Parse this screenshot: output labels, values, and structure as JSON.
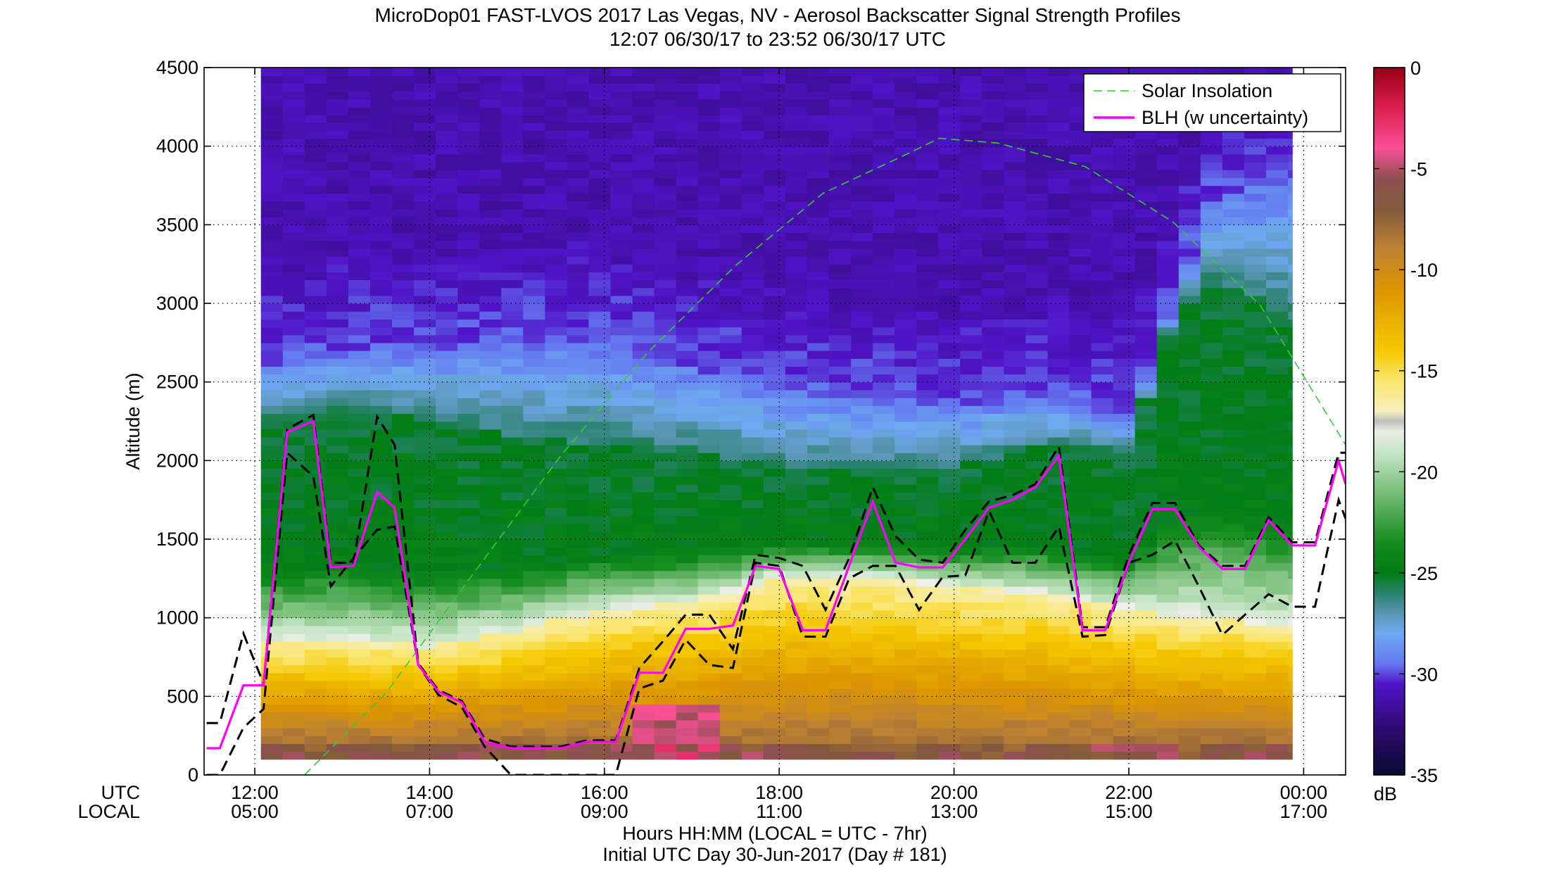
{
  "chart_data": {
    "type": "heatmap",
    "title": "MicroDop01 FAST-LVOS 2017 Las Vegas, NV - Aerosol Backscatter Signal Strength Profiles",
    "subtitle": "12:07 06/30/17 to 23:52 06/30/17  UTC",
    "ylabel": "Altitude (m)",
    "xlabel": "Hours HH:MM  (LOCAL = UTC - 7hr)",
    "xlabel2": "Initial UTC Day 30-Jun-2017 (Day # 181)",
    "utc_row_label": "UTC",
    "local_row_label": "LOCAL",
    "xlim_hours_utc": [
      11.42,
      24.48
    ],
    "ylim": [
      0,
      4500
    ],
    "yticks": [
      0,
      500,
      1000,
      1500,
      2000,
      2500,
      3000,
      3500,
      4000,
      4500
    ],
    "ytick_labels": [
      "0",
      "500",
      "1000",
      "1500",
      "2000",
      "2500",
      "3000",
      "3500",
      "4000",
      "4500"
    ],
    "xticks_hours_utc": [
      12,
      14,
      16,
      18,
      20,
      22,
      24
    ],
    "xtick_labels_utc": [
      "12:00",
      "14:00",
      "16:00",
      "18:00",
      "20:00",
      "22:00",
      "00:00"
    ],
    "xtick_labels_local": [
      "05:00",
      "07:00",
      "09:00",
      "11:00",
      "13:00",
      "15:00",
      "17:00"
    ],
    "grid": true,
    "legend_position": "top-right",
    "legend": [
      {
        "label": "Solar Insolation",
        "color": "#33cc33",
        "style": "dashed"
      },
      {
        "label": "BLH (w uncertainty)",
        "color": "#ff00ff",
        "style": "solid"
      }
    ],
    "colorbar": {
      "unit": "dB",
      "range": [
        -35,
        0
      ],
      "ticks": [
        0,
        -5,
        -10,
        -15,
        -20,
        -25,
        -30,
        -35
      ],
      "tick_labels": [
        "0",
        "-5",
        "-10",
        "-15",
        "-20",
        "-25",
        "-30",
        "-35"
      ]
    },
    "heatmap": {
      "time_start": 12.07,
      "time_end": 23.87,
      "time_step": 0.25,
      "alt_start": 100,
      "alt_end": 4500,
      "alt_step": 50,
      "cell_boundaries": [
        {
          "time": 12.07,
          "surface": 850,
          "mixed": 2250,
          "aloft": 2600
        },
        {
          "time": 13.0,
          "surface": 850,
          "mixed": 2350,
          "aloft": 2700
        },
        {
          "time": 14.0,
          "surface": 820,
          "mixed": 2250,
          "aloft": 2700
        },
        {
          "time": 15.0,
          "surface": 920,
          "mixed": 2150,
          "aloft": 2750
        },
        {
          "time": 16.0,
          "surface": 1050,
          "mixed": 2100,
          "aloft": 2750
        },
        {
          "time": 17.0,
          "surface": 1100,
          "mixed": 2050,
          "aloft": 2600
        },
        {
          "time": 18.0,
          "surface": 1250,
          "mixed": 1950,
          "aloft": 2450
        },
        {
          "time": 19.0,
          "surface": 1250,
          "mixed": 1950,
          "aloft": 2400
        },
        {
          "time": 20.0,
          "surface": 1200,
          "mixed": 1950,
          "aloft": 2350
        },
        {
          "time": 21.0,
          "surface": 1150,
          "mixed": 2100,
          "aloft": 2400
        },
        {
          "time": 22.0,
          "surface": 1050,
          "mixed": 2050,
          "aloft": 2250
        },
        {
          "time": 22.5,
          "surface": 1000,
          "mixed": 2900,
          "aloft": 3000
        },
        {
          "time": 23.0,
          "surface": 1000,
          "mixed": 3150,
          "aloft": 3700
        },
        {
          "time": 23.87,
          "surface": 950,
          "mixed": 2900,
          "aloft": 3800
        }
      ]
    },
    "series": [
      {
        "name": "BLH (w uncertainty)",
        "color": "#ff00ff",
        "x_hours_utc": [
          11.45,
          11.6,
          11.87,
          12.1,
          12.37,
          12.67,
          12.87,
          13.13,
          13.4,
          13.6,
          13.87,
          14.1,
          14.37,
          14.63,
          14.93,
          15.2,
          15.5,
          15.8,
          16.13,
          16.4,
          16.67,
          16.93,
          17.2,
          17.47,
          17.73,
          18.0,
          18.27,
          18.53,
          18.8,
          19.07,
          19.33,
          19.6,
          19.87,
          20.13,
          20.4,
          20.67,
          20.93,
          21.2,
          21.47,
          21.73,
          22.0,
          22.27,
          22.53,
          22.8,
          23.07,
          23.33,
          23.6,
          23.87,
          24.13,
          24.4,
          24.48
        ],
        "y": [
          170,
          170,
          570,
          570,
          2180,
          2250,
          1320,
          1330,
          1800,
          1700,
          700,
          530,
          460,
          210,
          170,
          170,
          170,
          210,
          210,
          650,
          650,
          930,
          930,
          950,
          1330,
          1310,
          920,
          920,
          1330,
          1740,
          1350,
          1320,
          1320,
          1500,
          1700,
          1750,
          1830,
          2030,
          920,
          920,
          1350,
          1690,
          1690,
          1450,
          1310,
          1310,
          1620,
          1460,
          1460,
          2000,
          1850
        ]
      },
      {
        "name": "BLH upper bound",
        "color": "#000000",
        "x_hours_utc": [
          11.45,
          11.6,
          11.87,
          12.1,
          12.37,
          12.67,
          12.87,
          13.13,
          13.4,
          13.6,
          13.87,
          14.1,
          14.37,
          14.63,
          14.93,
          15.2,
          15.5,
          15.8,
          16.13,
          16.4,
          16.67,
          16.93,
          17.2,
          17.47,
          17.73,
          18.0,
          18.27,
          18.53,
          18.8,
          19.07,
          19.33,
          19.6,
          19.87,
          20.13,
          20.4,
          20.67,
          20.93,
          21.2,
          21.47,
          21.73,
          22.0,
          22.27,
          22.53,
          22.8,
          23.07,
          23.33,
          23.6,
          23.87,
          24.13,
          24.4,
          24.48
        ],
        "y": [
          330,
          330,
          900,
          580,
          2200,
          2290,
          1350,
          1350,
          2280,
          2100,
          710,
          540,
          470,
          230,
          180,
          180,
          180,
          220,
          220,
          680,
          850,
          1020,
          1020,
          800,
          1400,
          1380,
          1330,
          1050,
          1380,
          1830,
          1520,
          1370,
          1350,
          1560,
          1740,
          1780,
          1850,
          2090,
          940,
          940,
          1400,
          1730,
          1730,
          1460,
          1330,
          1330,
          1640,
          1480,
          1480,
          2050,
          2050
        ]
      },
      {
        "name": "BLH lower bound",
        "color": "#000000",
        "x_hours_utc": [
          11.45,
          11.6,
          11.87,
          12.1,
          12.37,
          12.67,
          12.87,
          13.13,
          13.4,
          13.6,
          13.87,
          14.1,
          14.37,
          14.63,
          14.93,
          15.2,
          15.5,
          15.8,
          16.13,
          16.4,
          16.67,
          16.93,
          17.2,
          17.47,
          17.73,
          18.0,
          18.27,
          18.53,
          18.8,
          19.07,
          19.33,
          19.6,
          19.87,
          20.13,
          20.4,
          20.67,
          20.93,
          21.2,
          21.47,
          21.73,
          22.0,
          22.27,
          22.53,
          22.8,
          23.07,
          23.33,
          23.6,
          23.87,
          24.13,
          24.4,
          24.48
        ],
        "y": [
          0,
          0,
          300,
          420,
          2050,
          1900,
          1200,
          1380,
          1560,
          1580,
          700,
          510,
          430,
          180,
          0,
          0,
          0,
          0,
          0,
          550,
          600,
          860,
          700,
          680,
          1350,
          1330,
          880,
          880,
          1250,
          1330,
          1330,
          1050,
          1260,
          1270,
          1680,
          1350,
          1350,
          1580,
          880,
          890,
          1350,
          1400,
          1490,
          1200,
          890,
          1020,
          1150,
          1070,
          1070,
          1750,
          1630
        ]
      },
      {
        "name": "Solar Insolation",
        "color": "#33cc33",
        "x_hours_utc": [
          12.57,
          13.5,
          14.5,
          15.5,
          16.5,
          17.5,
          18.5,
          19.5,
          19.83,
          20.5,
          21.5,
          22.5,
          23.5,
          24.48
        ],
        "y": [
          0,
          520,
          1280,
          2030,
          2690,
          3240,
          3700,
          3960,
          4050,
          4020,
          3870,
          3520,
          2990,
          2100
        ]
      }
    ]
  }
}
